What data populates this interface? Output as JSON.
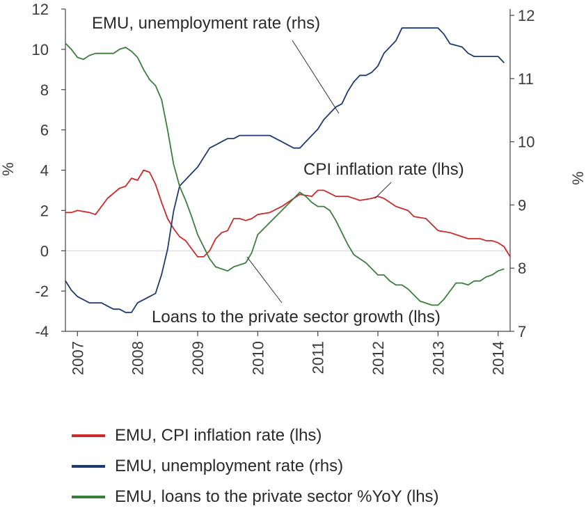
{
  "chart_data": {
    "type": "line",
    "title": "",
    "left_unit": "%",
    "right_unit": "%",
    "left_axis": {
      "ylim": [
        -4,
        12
      ],
      "ticks": [
        -4,
        -2,
        0,
        2,
        4,
        6,
        8,
        10,
        12
      ]
    },
    "right_axis": {
      "ylim": [
        7,
        12.1
      ],
      "ticks": [
        7,
        8,
        9,
        10,
        11,
        12
      ]
    },
    "x_axis": {
      "xlim": [
        2006.8,
        2014.2
      ],
      "ticks": [
        2007,
        2008,
        2009,
        2010,
        2011,
        2012,
        2013,
        2014
      ]
    },
    "zero_line": true,
    "grid": false,
    "legend_placement": "bottom",
    "annotations": [
      {
        "text": "EMU, unemployment rate (rhs)"
      },
      {
        "text": "CPI inflation rate (lhs)"
      },
      {
        "text": "Loans to the private sector growth (lhs)"
      }
    ],
    "series": [
      {
        "name": "EMU, CPI inflation rate (lhs)",
        "axis": "left",
        "color": "#cc2a2a",
        "x": [
          2006.8,
          2006.9,
          2007.0,
          2007.2,
          2007.3,
          2007.5,
          2007.7,
          2007.8,
          2007.9,
          2008.0,
          2008.1,
          2008.2,
          2008.3,
          2008.4,
          2008.5,
          2008.6,
          2008.7,
          2008.8,
          2008.9,
          2009.0,
          2009.1,
          2009.2,
          2009.3,
          2009.4,
          2009.5,
          2009.6,
          2009.7,
          2009.8,
          2009.9,
          2010.0,
          2010.2,
          2010.4,
          2010.6,
          2010.7,
          2010.9,
          2011.0,
          2011.1,
          2011.3,
          2011.5,
          2011.7,
          2011.9,
          2012.0,
          2012.1,
          2012.3,
          2012.5,
          2012.6,
          2012.8,
          2012.9,
          2013.0,
          2013.2,
          2013.4,
          2013.5,
          2013.7,
          2013.8,
          2013.9,
          2014.0,
          2014.1,
          2014.2
        ],
        "values": [
          1.9,
          1.9,
          2.0,
          1.9,
          1.8,
          2.6,
          3.1,
          3.2,
          3.6,
          3.5,
          4.0,
          3.9,
          3.3,
          2.4,
          1.6,
          1.1,
          0.7,
          0.5,
          0.1,
          -0.3,
          -0.3,
          0.0,
          0.6,
          0.9,
          1.0,
          1.6,
          1.6,
          1.5,
          1.6,
          1.8,
          1.9,
          2.2,
          2.6,
          2.8,
          2.7,
          3.0,
          3.0,
          2.7,
          2.7,
          2.5,
          2.6,
          2.7,
          2.6,
          2.2,
          2.0,
          1.7,
          1.6,
          1.3,
          1.0,
          0.9,
          0.7,
          0.6,
          0.6,
          0.5,
          0.5,
          0.4,
          0.2,
          -0.3
        ]
      },
      {
        "name": "EMU, unemployment rate (rhs)",
        "axis": "right",
        "color": "#1f3a6e",
        "x": [
          2006.8,
          2006.9,
          2007.0,
          2007.1,
          2007.2,
          2007.4,
          2007.5,
          2007.6,
          2007.7,
          2007.8,
          2007.9,
          2008.0,
          2008.1,
          2008.2,
          2008.3,
          2008.4,
          2008.5,
          2008.6,
          2008.7,
          2008.8,
          2008.9,
          2009.0,
          2009.1,
          2009.2,
          2009.3,
          2009.4,
          2009.5,
          2009.6,
          2009.7,
          2009.8,
          2010.0,
          2010.2,
          2010.3,
          2010.4,
          2010.5,
          2010.6,
          2010.7,
          2010.8,
          2010.9,
          2011.0,
          2011.1,
          2011.2,
          2011.3,
          2011.4,
          2011.5,
          2011.6,
          2011.7,
          2011.8,
          2011.9,
          2012.0,
          2012.1,
          2012.2,
          2012.3,
          2012.4,
          2012.5,
          2012.7,
          2012.9,
          2013.0,
          2013.1,
          2013.2,
          2013.4,
          2013.5,
          2013.6,
          2013.8,
          2014.0,
          2014.1
        ],
        "values": [
          7.8,
          7.65,
          7.55,
          7.5,
          7.45,
          7.45,
          7.4,
          7.35,
          7.35,
          7.3,
          7.3,
          7.45,
          7.5,
          7.55,
          7.6,
          7.9,
          8.3,
          8.9,
          9.3,
          9.4,
          9.5,
          9.6,
          9.75,
          9.9,
          9.95,
          10.0,
          10.05,
          10.05,
          10.1,
          10.1,
          10.1,
          10.1,
          10.05,
          10.0,
          9.95,
          9.9,
          9.9,
          10.0,
          10.1,
          10.2,
          10.35,
          10.45,
          10.55,
          10.6,
          10.8,
          10.95,
          11.05,
          11.05,
          11.1,
          11.2,
          11.4,
          11.5,
          11.6,
          11.8,
          11.8,
          11.8,
          11.8,
          11.8,
          11.7,
          11.55,
          11.5,
          11.4,
          11.35,
          11.35,
          11.35,
          11.25
        ]
      },
      {
        "name": "EMU, loans to the private sector %YoY (lhs)",
        "axis": "left",
        "color": "#3b7d3b",
        "x": [
          2006.8,
          2006.9,
          2007.0,
          2007.1,
          2007.2,
          2007.3,
          2007.4,
          2007.6,
          2007.7,
          2007.8,
          2007.9,
          2008.0,
          2008.1,
          2008.2,
          2008.3,
          2008.4,
          2008.5,
          2008.6,
          2008.7,
          2008.8,
          2008.9,
          2009.0,
          2009.1,
          2009.2,
          2009.3,
          2009.4,
          2009.5,
          2009.6,
          2009.7,
          2009.8,
          2009.9,
          2010.0,
          2010.1,
          2010.2,
          2010.3,
          2010.4,
          2010.5,
          2010.6,
          2010.7,
          2010.8,
          2010.9,
          2011.0,
          2011.1,
          2011.2,
          2011.3,
          2011.4,
          2011.5,
          2011.6,
          2011.7,
          2011.8,
          2011.9,
          2012.0,
          2012.1,
          2012.2,
          2012.3,
          2012.4,
          2012.5,
          2012.6,
          2012.7,
          2012.8,
          2012.9,
          2013.0,
          2013.1,
          2013.2,
          2013.3,
          2013.4,
          2013.5,
          2013.6,
          2013.7,
          2013.8,
          2013.9,
          2014.0,
          2014.1
        ],
        "values": [
          10.3,
          10.0,
          9.6,
          9.5,
          9.7,
          9.8,
          9.8,
          9.8,
          10.0,
          10.1,
          9.9,
          9.6,
          9.0,
          8.5,
          8.2,
          7.5,
          6.0,
          4.3,
          3.2,
          2.5,
          1.7,
          0.8,
          0.2,
          -0.4,
          -0.8,
          -0.9,
          -1.0,
          -0.8,
          -0.7,
          -0.6,
          -0.1,
          0.8,
          1.1,
          1.4,
          1.7,
          2.0,
          2.3,
          2.6,
          2.9,
          2.7,
          2.4,
          2.2,
          2.2,
          2.0,
          1.5,
          0.9,
          0.3,
          -0.2,
          -0.4,
          -0.6,
          -0.9,
          -1.2,
          -1.2,
          -1.5,
          -1.7,
          -1.7,
          -1.9,
          -2.2,
          -2.5,
          -2.6,
          -2.7,
          -2.7,
          -2.4,
          -2.0,
          -1.6,
          -1.6,
          -1.7,
          -1.5,
          -1.5,
          -1.3,
          -1.2,
          -1.0,
          -0.9
        ]
      }
    ]
  }
}
